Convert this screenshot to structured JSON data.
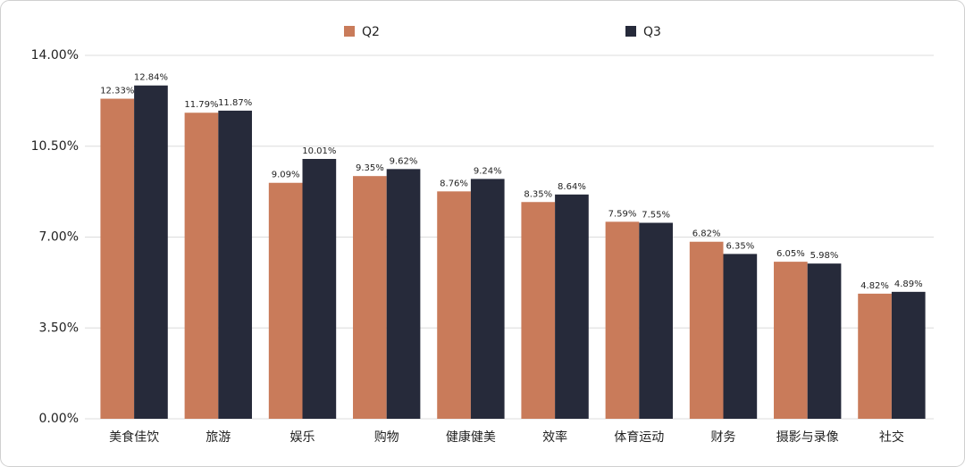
{
  "chart_data": {
    "type": "bar",
    "categories": [
      "美食佳饮",
      "旅游",
      "娱乐",
      "购物",
      "健康健美",
      "效率",
      "体育运动",
      "财务",
      "摄影与录像",
      "社交"
    ],
    "series": [
      {
        "name": "Q2",
        "color": "#c97b5a",
        "values": [
          12.33,
          11.79,
          9.09,
          9.35,
          8.76,
          8.35,
          7.59,
          6.82,
          6.05,
          4.82
        ],
        "value_labels": [
          "12.33%",
          "11.79%",
          "9.09%",
          "9.35%",
          "8.76%",
          "8.35%",
          "7.59%",
          "6.82%",
          "6.05%",
          "4.82%"
        ]
      },
      {
        "name": "Q3",
        "color": "#262a3a",
        "values": [
          12.84,
          11.87,
          10.01,
          9.62,
          9.24,
          8.64,
          7.55,
          6.35,
          5.98,
          4.89
        ],
        "value_labels": [
          "12.84%",
          "11.87%",
          "10.01%",
          "9.62%",
          "9.24%",
          "8.64%",
          "7.55%",
          "6.35%",
          "5.98%",
          "4.89%"
        ]
      }
    ],
    "ylim": [
      0,
      14
    ],
    "yticks": [
      {
        "value": 0,
        "label": "0.00%"
      },
      {
        "value": 3.5,
        "label": "3.50%"
      },
      {
        "value": 7,
        "label": "7.00%"
      },
      {
        "value": 10.5,
        "label": "10.50%"
      },
      {
        "value": 14,
        "label": "14.00%"
      }
    ],
    "grid": true,
    "legend": "top"
  }
}
